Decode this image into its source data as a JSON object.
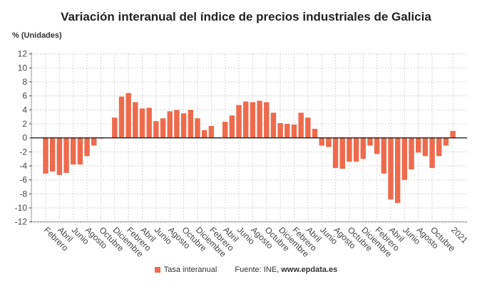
{
  "chart_data": {
    "type": "bar",
    "title": "Variación interanual del índice de precios industriales de Galicia",
    "ylabel": "% (Unidades)",
    "xlabel": "",
    "ylim": [
      -12,
      12
    ],
    "yticks": [
      12,
      10,
      8,
      6,
      4,
      2,
      0,
      -2,
      -4,
      -6,
      -8,
      -10,
      -12
    ],
    "grid": true,
    "legend_position": "bottom",
    "series": [
      {
        "name": "Tasa interanual",
        "color": "#EE6A4C",
        "values": [
          -5.1,
          -4.8,
          -5.3,
          -5.0,
          -3.8,
          -3.8,
          -2.6,
          -1.1,
          -0.1,
          0.0,
          2.9,
          5.9,
          6.4,
          5.1,
          4.2,
          4.3,
          2.4,
          2.8,
          3.8,
          4.0,
          3.5,
          4.0,
          2.8,
          1.1,
          1.7,
          0.1,
          2.3,
          3.2,
          4.7,
          5.2,
          5.1,
          5.3,
          5.1,
          3.6,
          2.1,
          2.0,
          1.9,
          3.6,
          2.9,
          1.3,
          -1.1,
          -1.3,
          -4.3,
          -4.4,
          -3.4,
          -3.4,
          -3.0,
          -1.1,
          -2.3,
          -5.1,
          -8.8,
          -9.3,
          -6.0,
          -4.5,
          -2.1,
          -2.6,
          -4.3,
          -2.6,
          -1.1,
          1.0
        ]
      }
    ],
    "x_tick_labels": [
      {
        "bar": 0,
        "label": "Febrero"
      },
      {
        "bar": 2,
        "label": "Abril"
      },
      {
        "bar": 4,
        "label": "Junio"
      },
      {
        "bar": 6,
        "label": "Agosto"
      },
      {
        "bar": 8,
        "label": "Octubre"
      },
      {
        "bar": 10,
        "label": "Diciembre"
      },
      {
        "bar": 12,
        "label": "Febrero"
      },
      {
        "bar": 14,
        "label": "Abril"
      },
      {
        "bar": 16,
        "label": "Junio"
      },
      {
        "bar": 18,
        "label": "Agosto"
      },
      {
        "bar": 20,
        "label": "Octubre"
      },
      {
        "bar": 22,
        "label": "Diciembre"
      },
      {
        "bar": 24,
        "label": "Febrero"
      },
      {
        "bar": 26,
        "label": "Abril"
      },
      {
        "bar": 28,
        "label": "Junio"
      },
      {
        "bar": 30,
        "label": "Agosto"
      },
      {
        "bar": 32,
        "label": "Octubre"
      },
      {
        "bar": 34,
        "label": "Diciembre"
      },
      {
        "bar": 36,
        "label": "Febrero"
      },
      {
        "bar": 38,
        "label": "Abril"
      },
      {
        "bar": 40,
        "label": "Junio"
      },
      {
        "bar": 42,
        "label": "Agosto"
      },
      {
        "bar": 44,
        "label": "Octubre"
      },
      {
        "bar": 46,
        "label": "Diciembre"
      },
      {
        "bar": 48,
        "label": "Febrero"
      },
      {
        "bar": 50,
        "label": "Abril"
      },
      {
        "bar": 52,
        "label": "Junio"
      },
      {
        "bar": 54,
        "label": "Agosto"
      },
      {
        "bar": 56,
        "label": "Octubre"
      },
      {
        "bar": 59,
        "label": "2021"
      }
    ],
    "source_label": "Fuente: INE,",
    "source_site": "www.epdata.es"
  }
}
